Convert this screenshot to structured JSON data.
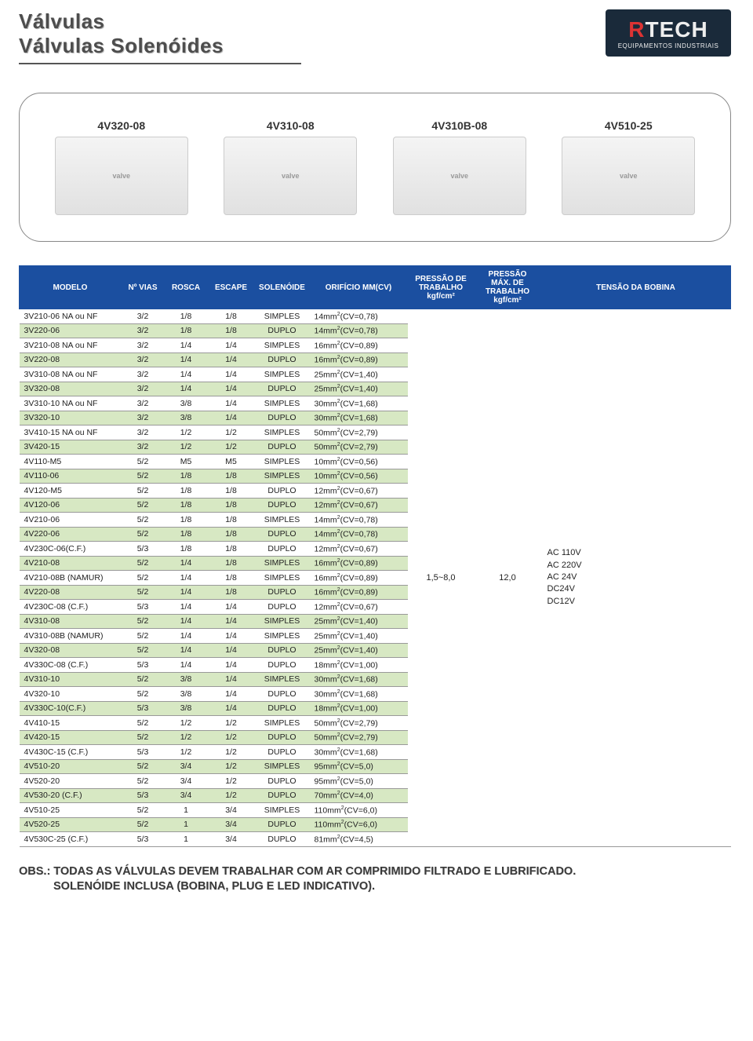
{
  "header": {
    "title1": "Válvulas",
    "title2": "Válvulas Solenóides",
    "logo_brand_r": "R",
    "logo_brand_rest": "TECH",
    "logo_sub": "EQUIPAMENTOS INDUSTRIAIS"
  },
  "products": [
    {
      "name": "4V320-08"
    },
    {
      "name": "4V310-08"
    },
    {
      "name": "4V310B-08"
    },
    {
      "name": "4V510-25"
    }
  ],
  "table": {
    "columns": [
      "MODELO",
      "Nº VIAS",
      "ROSCA",
      "ESCAPE",
      "SOLENÓIDE",
      "ORIFÍCIO MM(CV)",
      "PRESSÃO DE TRABALHO kgf/cm²",
      "PRESSÃO MÁX. DE TRABALHO kgf/cm²",
      "TENSÃO DA BOBINA"
    ],
    "pressao_trab": "1,5~8,0",
    "pressao_max": "12,0",
    "voltages": [
      "AC 110V",
      "AC 220V",
      "AC 24V",
      "DC24V",
      "DC12V"
    ],
    "rows": [
      {
        "hl": false,
        "c": [
          "3V210-06 NA ou NF",
          "3/2",
          "1/8",
          "1/8",
          "SIMPLES",
          "14mm²(CV=0,78)"
        ]
      },
      {
        "hl": true,
        "c": [
          "3V220-06",
          "3/2",
          "1/8",
          "1/8",
          "DUPLO",
          "14mm²(CV=0,78)"
        ]
      },
      {
        "hl": false,
        "c": [
          "3V210-08 NA ou NF",
          "3/2",
          "1/4",
          "1/4",
          "SIMPLES",
          "16mm²(CV=0,89)"
        ]
      },
      {
        "hl": true,
        "c": [
          "3V220-08",
          "3/2",
          "1/4",
          "1/4",
          "DUPLO",
          "16mm²(CV=0,89)"
        ]
      },
      {
        "hl": false,
        "c": [
          "3V310-08 NA ou NF",
          "3/2",
          "1/4",
          "1/4",
          "SIMPLES",
          "25mm²(CV=1,40)"
        ]
      },
      {
        "hl": true,
        "c": [
          "3V320-08",
          "3/2",
          "1/4",
          "1/4",
          "DUPLO",
          "25mm²(CV=1,40)"
        ]
      },
      {
        "hl": false,
        "c": [
          "3V310-10 NA ou NF",
          "3/2",
          "3/8",
          "1/4",
          "SIMPLES",
          "30mm²(CV=1,68)"
        ]
      },
      {
        "hl": true,
        "c": [
          "3V320-10",
          "3/2",
          "3/8",
          "1/4",
          "DUPLO",
          "30mm²(CV=1,68)"
        ]
      },
      {
        "hl": false,
        "c": [
          "3V410-15 NA ou NF",
          "3/2",
          "1/2",
          "1/2",
          "SIMPLES",
          "50mm²(CV=2,79)"
        ]
      },
      {
        "hl": true,
        "c": [
          "3V420-15",
          "3/2",
          "1/2",
          "1/2",
          "DUPLO",
          "50mm²(CV=2,79)"
        ]
      },
      {
        "hl": false,
        "c": [
          "4V110-M5",
          "5/2",
          "M5",
          "M5",
          "SIMPLES",
          "10mm²(CV=0,56)"
        ]
      },
      {
        "hl": true,
        "c": [
          "4V110-06",
          "5/2",
          "1/8",
          "1/8",
          "SIMPLES",
          "10mm²(CV=0,56)"
        ]
      },
      {
        "hl": false,
        "c": [
          "4V120-M5",
          "5/2",
          "1/8",
          "1/8",
          "DUPLO",
          "12mm²(CV=0,67)"
        ]
      },
      {
        "hl": true,
        "c": [
          "4V120-06",
          "5/2",
          "1/8",
          "1/8",
          "DUPLO",
          "12mm²(CV=0,67)"
        ]
      },
      {
        "hl": false,
        "c": [
          "4V210-06",
          "5/2",
          "1/8",
          "1/8",
          "SIMPLES",
          "14mm²(CV=0,78)"
        ]
      },
      {
        "hl": true,
        "c": [
          "4V220-06",
          "5/2",
          "1/8",
          "1/8",
          "DUPLO",
          "14mm²(CV=0,78)"
        ]
      },
      {
        "hl": false,
        "c": [
          "4V230C-06(C.F.)",
          "5/3",
          "1/8",
          "1/8",
          "DUPLO",
          "12mm²(CV=0,67)"
        ]
      },
      {
        "hl": true,
        "c": [
          "4V210-08",
          "5/2",
          "1/4",
          "1/8",
          "SIMPLES",
          "16mm²(CV=0,89)"
        ]
      },
      {
        "hl": false,
        "c": [
          "4V210-08B (NAMUR)",
          "5/2",
          "1/4",
          "1/8",
          "SIMPLES",
          "16mm²(CV=0,89)"
        ]
      },
      {
        "hl": true,
        "c": [
          "4V220-08",
          "5/2",
          "1/4",
          "1/8",
          "DUPLO",
          "16mm²(CV=0,89)"
        ]
      },
      {
        "hl": false,
        "c": [
          "4V230C-08 (C.F.)",
          "5/3",
          "1/4",
          "1/4",
          "DUPLO",
          "12mm²(CV=0,67)"
        ]
      },
      {
        "hl": true,
        "c": [
          "4V310-08",
          "5/2",
          "1/4",
          "1/4",
          "SIMPLES",
          "25mm²(CV=1,40)"
        ]
      },
      {
        "hl": false,
        "c": [
          "4V310-08B (NAMUR)",
          "5/2",
          "1/4",
          "1/4",
          "SIMPLES",
          "25mm²(CV=1,40)"
        ]
      },
      {
        "hl": true,
        "c": [
          "4V320-08",
          "5/2",
          "1/4",
          "1/4",
          "DUPLO",
          "25mm²(CV=1,40)"
        ]
      },
      {
        "hl": false,
        "c": [
          "4V330C-08 (C.F.)",
          "5/3",
          "1/4",
          "1/4",
          "DUPLO",
          "18mm²(CV=1,00)"
        ]
      },
      {
        "hl": true,
        "c": [
          "4V310-10",
          "5/2",
          "3/8",
          "1/4",
          "SIMPLES",
          "30mm²(CV=1,68)"
        ]
      },
      {
        "hl": false,
        "c": [
          "4V320-10",
          "5/2",
          "3/8",
          "1/4",
          "DUPLO",
          "30mm²(CV=1,68)"
        ]
      },
      {
        "hl": true,
        "c": [
          "4V330C-10(C.F.)",
          "5/3",
          "3/8",
          "1/4",
          "DUPLO",
          "18mm²(CV=1,00)"
        ]
      },
      {
        "hl": false,
        "c": [
          "4V410-15",
          "5/2",
          "1/2",
          "1/2",
          "SIMPLES",
          "50mm²(CV=2,79)"
        ]
      },
      {
        "hl": true,
        "c": [
          "4V420-15",
          "5/2",
          "1/2",
          "1/2",
          "DUPLO",
          "50mm²(CV=2,79)"
        ]
      },
      {
        "hl": false,
        "c": [
          "4V430C-15 (C.F.)",
          "5/3",
          "1/2",
          "1/2",
          "DUPLO",
          "30mm²(CV=1,68)"
        ]
      },
      {
        "hl": true,
        "c": [
          "4V510-20",
          "5/2",
          "3/4",
          "1/2",
          "SIMPLES",
          "95mm²(CV=5,0)"
        ]
      },
      {
        "hl": false,
        "c": [
          "4V520-20",
          "5/2",
          "3/4",
          "1/2",
          "DUPLO",
          "95mm²(CV=5,0)"
        ]
      },
      {
        "hl": true,
        "c": [
          "4V530-20 (C.F.)",
          "5/3",
          "3/4",
          "1/2",
          "DUPLO",
          "70mm²(CV=4,0)"
        ]
      },
      {
        "hl": false,
        "c": [
          "4V510-25",
          "5/2",
          "1",
          "3/4",
          "SIMPLES",
          "110mm²(CV=6,0)"
        ]
      },
      {
        "hl": true,
        "c": [
          "4V520-25",
          "5/2",
          "1",
          "3/4",
          "DUPLO",
          "110mm²(CV=6,0)"
        ]
      },
      {
        "hl": false,
        "c": [
          "4V530C-25 (C.F.)",
          "5/3",
          "1",
          "3/4",
          "DUPLO",
          "81mm²(CV=4,5)"
        ]
      }
    ],
    "header_bg": "#1b4fa0",
    "highlight_bg": "#d7e8c3"
  },
  "footer": {
    "line1": "OBS.: TODAS AS VÁLVULAS DEVEM TRABALHAR COM AR COMPRIMIDO FILTRADO E LUBRIFICADO.",
    "line2": "SOLENÓIDE INCLUSA (BOBINA, PLUG E LED INDICATIVO)."
  }
}
